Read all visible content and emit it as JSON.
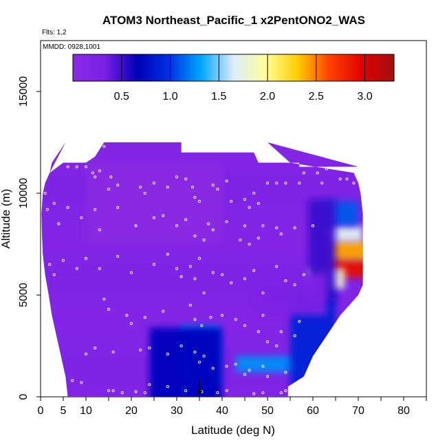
{
  "chart_data": {
    "type": "heatmap",
    "title": "ATOM3 Northeast_Pacific_1 x2PentONO2_WAS",
    "annotations": [
      "Flts: 1,2",
      "MMDD: 0928,1001"
    ],
    "xlabel": "Latitude (deg N)",
    "ylabel": "Altitude (m)",
    "xlim": [
      0,
      85
    ],
    "ylim": [
      0,
      17500
    ],
    "xticks": [
      0,
      5,
      10,
      20,
      30,
      40,
      50,
      60,
      70,
      80
    ],
    "xticks_minor": [
      15,
      25,
      35,
      45,
      55,
      65,
      75,
      85
    ],
    "yticks": [
      0,
      5000,
      10000,
      15000
    ],
    "colorbar": {
      "ticks": [
        0.5,
        1.0,
        1.5,
        2.0,
        2.5,
        3.0
      ],
      "tick_labels": [
        "0.5",
        "1.0",
        "1.5",
        "2.0",
        "2.5",
        "3.0"
      ],
      "min": 0.0,
      "max": 3.3,
      "stops": [
        "#8a2be2",
        "#7a1fe6",
        "#0000b8",
        "#0030e0",
        "#00a8ff",
        "#dcecff",
        "#ffff99",
        "#ffcc00",
        "#ff4000",
        "#e00000",
        "#a01010"
      ]
    },
    "envelope": {
      "lat_left_by_alt": [
        [
          0,
          6
        ],
        [
          1000,
          5.5
        ],
        [
          2000,
          4.5
        ],
        [
          3000,
          3.5
        ],
        [
          4000,
          2.5
        ],
        [
          5000,
          1.8
        ],
        [
          6000,
          1
        ],
        [
          7000,
          0.5
        ],
        [
          8000,
          0.3
        ],
        [
          9000,
          0.2
        ],
        [
          10000,
          0.5
        ],
        [
          10500,
          1
        ],
        [
          11000,
          2
        ],
        [
          11500,
          2.5
        ],
        [
          12500,
          5.5
        ]
      ],
      "lat_right_by_alt": [
        [
          0,
          54.5
        ],
        [
          500,
          54.5
        ],
        [
          1000,
          58
        ],
        [
          2000,
          60
        ],
        [
          3000,
          63
        ],
        [
          4000,
          66
        ],
        [
          5000,
          70
        ],
        [
          5500,
          71
        ],
        [
          6000,
          71
        ],
        [
          7000,
          71
        ],
        [
          8000,
          71
        ],
        [
          9000,
          71
        ],
        [
          10000,
          70.5
        ],
        [
          10500,
          70
        ],
        [
          11000,
          69
        ],
        [
          11500,
          55
        ],
        [
          12500,
          50
        ]
      ],
      "top_by_lat": [
        [
          2,
          11000
        ],
        [
          5,
          11500
        ],
        [
          10,
          11500
        ],
        [
          12,
          11800
        ],
        [
          14,
          12500
        ],
        [
          31,
          12500
        ],
        [
          31,
          12000
        ],
        [
          47,
          12000
        ],
        [
          48,
          11500
        ],
        [
          57,
          11500
        ],
        [
          57,
          11300
        ],
        [
          70,
          11300
        ]
      ]
    },
    "fields": {
      "background": 0.15,
      "features": [
        {
          "lat": 35,
          "alt": 2000,
          "dlat": 4.5,
          "dalt": 1500,
          "value": 1.2
        },
        {
          "lat": 32,
          "alt": 1200,
          "dlat": 8,
          "dalt": 2200,
          "value": 0.7
        },
        {
          "lat": 50,
          "alt": 1600,
          "dlat": 7,
          "dalt": 400,
          "value": 1.25
        },
        {
          "lat": 60,
          "alt": 3000,
          "dlat": 5,
          "dalt": 2500,
          "value": 0.9
        },
        {
          "lat": 68,
          "alt": 6300,
          "dlat": 5,
          "dalt": 450,
          "value": 2.9
        },
        {
          "lat": 68,
          "alt": 7200,
          "dlat": 4.5,
          "dalt": 500,
          "value": 2.4
        },
        {
          "lat": 67,
          "alt": 8000,
          "dlat": 4,
          "dalt": 400,
          "value": 1.7
        },
        {
          "lat": 66,
          "alt": 9000,
          "dlat": 4,
          "dalt": 600,
          "value": 1.1
        },
        {
          "lat": 63,
          "alt": 5800,
          "dlat": 4,
          "dalt": 500,
          "value": 1.8
        },
        {
          "lat": 62,
          "alt": 7200,
          "dlat": 3,
          "dalt": 2500,
          "value": 0.5
        },
        {
          "lat": 55,
          "alt": 5000,
          "dlat": 8,
          "dalt": 1000,
          "value": 0.25
        },
        {
          "lat": 25,
          "alt": 9500,
          "dlat": 15,
          "dalt": 2000,
          "value": -0.1
        }
      ]
    },
    "markers": [
      {
        "type": "point",
        "lat": 35,
        "alt": 200,
        "label": "down-arrow"
      }
    ],
    "sample_points": [
      [
        6,
        11300
      ],
      [
        8,
        11300
      ],
      [
        10,
        11300
      ],
      [
        11.5,
        11000
      ],
      [
        12,
        10800
      ],
      [
        13,
        11100
      ],
      [
        14,
        12300
      ],
      [
        15,
        10200
      ],
      [
        15.5,
        10800
      ],
      [
        17,
        10400
      ],
      [
        22,
        10300
      ],
      [
        23,
        10000
      ],
      [
        25,
        10500
      ],
      [
        28,
        10300
      ],
      [
        30,
        10800
      ],
      [
        32,
        10700
      ],
      [
        33.5,
        10300
      ],
      [
        34,
        9800
      ],
      [
        35,
        9600
      ],
      [
        38,
        10400
      ],
      [
        39,
        10200
      ],
      [
        41,
        10600
      ],
      [
        42,
        9600
      ],
      [
        45,
        9700
      ],
      [
        46,
        9300
      ],
      [
        47,
        10000
      ],
      [
        48,
        9500
      ],
      [
        49,
        8400
      ],
      [
        50,
        10500
      ],
      [
        52,
        10500
      ],
      [
        54,
        10500
      ],
      [
        57,
        10500
      ],
      [
        58,
        11000
      ],
      [
        61,
        11000
      ],
      [
        62,
        10500
      ],
      [
        63,
        11200
      ],
      [
        66,
        10700
      ],
      [
        67.5,
        10700
      ],
      [
        69,
        10500
      ],
      [
        1,
        10000
      ],
      [
        1.5,
        9200
      ],
      [
        3,
        9500
      ],
      [
        4,
        8500
      ],
      [
        6,
        9300
      ],
      [
        9,
        8800
      ],
      [
        12,
        9200
      ],
      [
        13,
        8200
      ],
      [
        17,
        9300
      ],
      [
        21,
        8400
      ],
      [
        25,
        8800
      ],
      [
        27,
        8900
      ],
      [
        30,
        8400
      ],
      [
        32,
        8700
      ],
      [
        34,
        7900
      ],
      [
        36,
        7700
      ],
      [
        37,
        8500
      ],
      [
        38,
        8200
      ],
      [
        41,
        8600
      ],
      [
        44,
        7700
      ],
      [
        45,
        8400
      ],
      [
        46,
        7500
      ],
      [
        48,
        7800
      ],
      [
        52,
        8300
      ],
      [
        53,
        8000
      ],
      [
        56,
        8300
      ],
      [
        60,
        8400
      ],
      [
        2,
        6500
      ],
      [
        3,
        6000
      ],
      [
        5,
        6700
      ],
      [
        8,
        6300
      ],
      [
        10,
        6800
      ],
      [
        13,
        6300
      ],
      [
        17,
        6900
      ],
      [
        20,
        6100
      ],
      [
        25,
        6500
      ],
      [
        28,
        7000
      ],
      [
        30,
        6300
      ],
      [
        31,
        5900
      ],
      [
        33,
        6400
      ],
      [
        34,
        5800
      ],
      [
        35,
        6800
      ],
      [
        36,
        5100
      ],
      [
        38,
        6100
      ],
      [
        40,
        6000
      ],
      [
        42,
        5600
      ],
      [
        45,
        5800
      ],
      [
        47,
        6200
      ],
      [
        49,
        5100
      ],
      [
        52,
        6400
      ],
      [
        54,
        5700
      ],
      [
        56,
        5500
      ],
      [
        58,
        6000
      ],
      [
        14,
        4800
      ],
      [
        15,
        4300
      ],
      [
        19,
        4000
      ],
      [
        20,
        3600
      ],
      [
        23,
        3900
      ],
      [
        27,
        4200
      ],
      [
        33,
        4500
      ],
      [
        34,
        3800
      ],
      [
        35.5,
        3500
      ],
      [
        37.5,
        3900
      ],
      [
        40,
        4000
      ],
      [
        43,
        3800
      ],
      [
        45,
        3500
      ],
      [
        48,
        3200
      ],
      [
        49,
        4000
      ],
      [
        50,
        2700
      ],
      [
        52,
        2500
      ],
      [
        53,
        3200
      ],
      [
        56,
        3000
      ],
      [
        57,
        3700
      ],
      [
        10,
        2100
      ],
      [
        12,
        2400
      ],
      [
        16,
        2200
      ],
      [
        22,
        2300
      ],
      [
        24,
        2400
      ],
      [
        28,
        2100
      ],
      [
        31,
        2500
      ],
      [
        34,
        2200
      ],
      [
        35,
        1700
      ],
      [
        36,
        2000
      ],
      [
        38,
        1400
      ],
      [
        41,
        1500
      ],
      [
        43,
        1600
      ],
      [
        45,
        1100
      ],
      [
        46,
        1300
      ],
      [
        49,
        1500
      ],
      [
        50,
        1000
      ],
      [
        54,
        1200
      ],
      [
        7,
        800
      ],
      [
        9,
        700
      ],
      [
        15,
        300
      ],
      [
        16,
        300
      ],
      [
        18,
        200
      ],
      [
        21,
        250
      ],
      [
        23,
        200
      ],
      [
        24,
        600
      ],
      [
        28,
        500
      ],
      [
        32,
        300
      ],
      [
        35.5,
        250
      ],
      [
        39,
        200
      ],
      [
        41,
        300
      ],
      [
        47,
        150
      ],
      [
        49,
        200
      ],
      [
        53,
        200
      ],
      [
        54,
        300
      ]
    ]
  }
}
